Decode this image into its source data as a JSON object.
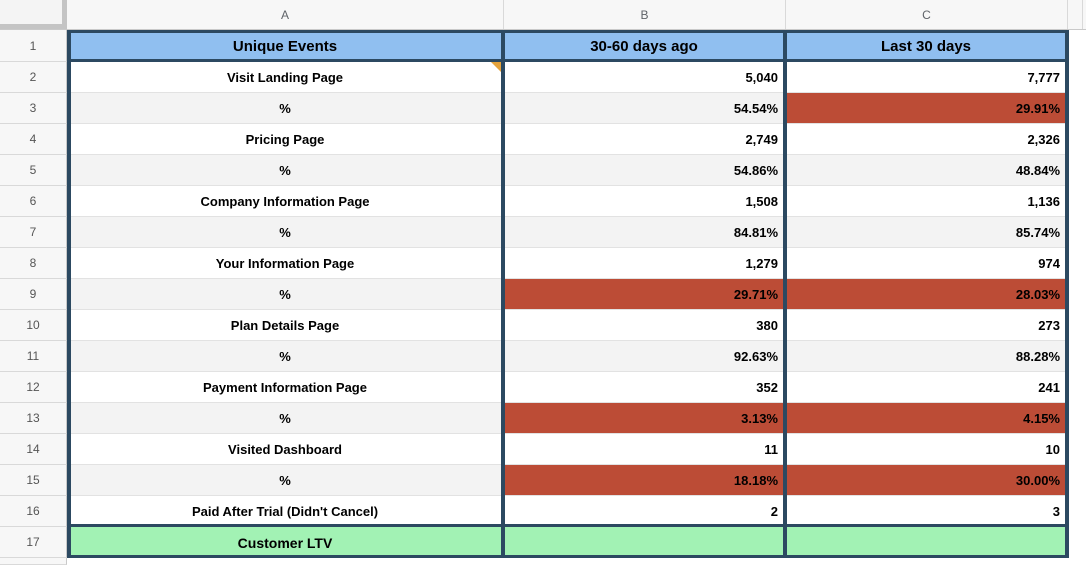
{
  "palette": {
    "header_blue": "#90bff0",
    "alert_red": "#bc4c36",
    "ltv_green": "#a2f2b4",
    "border_navy": "#2c4961",
    "note_orange": "#e5a33c"
  },
  "sheet": {
    "column_letters": [
      "A",
      "B",
      "C"
    ],
    "rows": [
      {
        "num": "1",
        "type": "header",
        "highlight": [],
        "cells": {
          "a": "Unique Events",
          "b": "30-60 days ago",
          "c": "Last 30 days"
        }
      },
      {
        "num": "2",
        "type": "event",
        "highlight": [],
        "note": "a",
        "cells": {
          "a": "Visit Landing Page",
          "b": "5,040",
          "c": "7,777"
        }
      },
      {
        "num": "3",
        "type": "pct",
        "highlight": [
          "c"
        ],
        "cells": {
          "a": "%",
          "b": "54.54%",
          "c": "29.91%"
        }
      },
      {
        "num": "4",
        "type": "event",
        "highlight": [],
        "cells": {
          "a": "Pricing Page",
          "b": "2,749",
          "c": "2,326"
        }
      },
      {
        "num": "5",
        "type": "pct",
        "highlight": [],
        "cells": {
          "a": "%",
          "b": "54.86%",
          "c": "48.84%"
        }
      },
      {
        "num": "6",
        "type": "event",
        "highlight": [],
        "cells": {
          "a": "Company Information Page",
          "b": "1,508",
          "c": "1,136"
        }
      },
      {
        "num": "7",
        "type": "pct",
        "highlight": [],
        "cells": {
          "a": "%",
          "b": "84.81%",
          "c": "85.74%"
        }
      },
      {
        "num": "8",
        "type": "event",
        "highlight": [],
        "cells": {
          "a": "Your Information Page",
          "b": "1,279",
          "c": "974"
        }
      },
      {
        "num": "9",
        "type": "pct",
        "highlight": [
          "b",
          "c"
        ],
        "cells": {
          "a": "%",
          "b": "29.71%",
          "c": "28.03%"
        }
      },
      {
        "num": "10",
        "type": "event",
        "highlight": [],
        "cells": {
          "a": "Plan Details Page",
          "b": "380",
          "c": "273"
        }
      },
      {
        "num": "11",
        "type": "pct",
        "highlight": [],
        "cells": {
          "a": "%",
          "b": "92.63%",
          "c": "88.28%"
        }
      },
      {
        "num": "12",
        "type": "event",
        "highlight": [],
        "cells": {
          "a": "Payment Information Page",
          "b": "352",
          "c": "241"
        }
      },
      {
        "num": "13",
        "type": "pct",
        "highlight": [
          "b",
          "c"
        ],
        "cells": {
          "a": "%",
          "b": "3.13%",
          "c": "4.15%"
        }
      },
      {
        "num": "14",
        "type": "event",
        "highlight": [],
        "cells": {
          "a": "Visited Dashboard",
          "b": "11",
          "c": "10"
        }
      },
      {
        "num": "15",
        "type": "pct",
        "highlight": [
          "b",
          "c"
        ],
        "cells": {
          "a": "%",
          "b": "18.18%",
          "c": "30.00%"
        }
      },
      {
        "num": "16",
        "type": "event",
        "highlight": [],
        "cells": {
          "a": "Paid After Trial (Didn't Cancel)",
          "b": "2",
          "c": "3"
        }
      },
      {
        "num": "17",
        "type": "ltv",
        "highlight": [],
        "cells": {
          "a": "Customer LTV",
          "b": "",
          "c": ""
        }
      }
    ]
  }
}
